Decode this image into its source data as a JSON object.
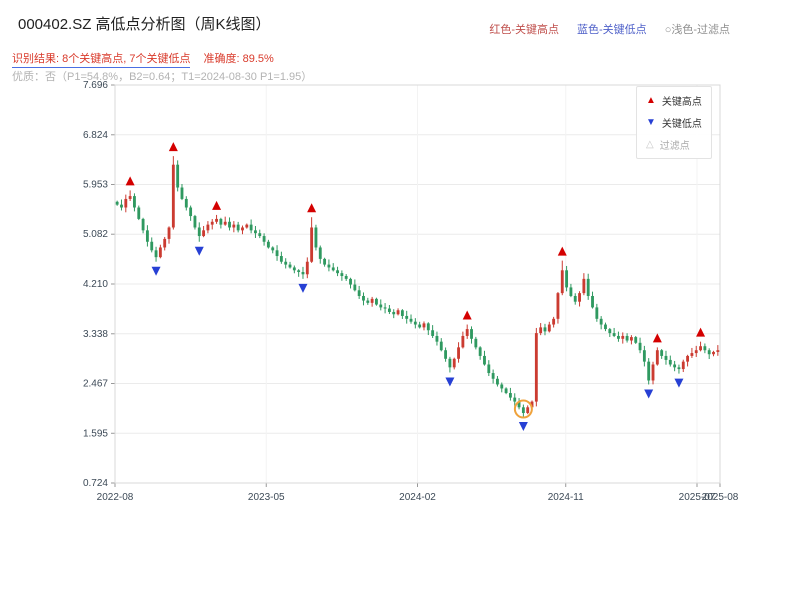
{
  "header": {
    "title": "000402.SZ 高低点分析图（周K线图）",
    "legend_high": "红色-关键高点",
    "legend_low": "蓝色-关键低点",
    "legend_filter": "○浅色-过滤点",
    "result_line": "识别结果: 8个关键高点, 7个关键低点",
    "accuracy": "准确度: 89.5%",
    "quality_line": "优质：否（P1=54.8%，B2=0.64；T1=2024-08-30 P1=1.95）"
  },
  "chart_legend": {
    "high": "关键高点",
    "low": "关键低点",
    "filter": "过滤点"
  },
  "colors": {
    "up_candle": "#cb3b31",
    "down_candle": "#2f9960",
    "key_high_marker": "#d40000",
    "key_low_marker": "#2740d4",
    "filter_circle": "#efa23b",
    "grid": "#ebebeb",
    "grid_vertical": "#f3f3f3",
    "axis_border": "#d8d8d8",
    "tick_text": "#3d4a57",
    "accent_red": "#d93a2b",
    "accent_blue": "#4f61c9"
  },
  "chart_data": {
    "type": "candlestick",
    "title": "000402.SZ 高低点分析图（周K线图）",
    "frequency": "weekly",
    "y_ticks": [
      "7.696",
      "6.824",
      "5.953",
      "5.082",
      "4.210",
      "3.338",
      "2.467",
      "1.595",
      "0.724"
    ],
    "x_ticks": [
      {
        "label": "2022-08",
        "pos": 0.0
      },
      {
        "label": "2023-05",
        "pos": 0.25
      },
      {
        "label": "2024-02",
        "pos": 0.5
      },
      {
        "label": "2024-11",
        "pos": 0.745
      },
      {
        "label": "2025-07",
        "pos": 0.962
      },
      {
        "label": "2025-08",
        "pos": 1.0
      }
    ],
    "closes": [
      5.6,
      5.55,
      5.7,
      5.75,
      5.55,
      5.35,
      5.15,
      4.95,
      4.8,
      4.68,
      4.85,
      5.0,
      5.2,
      6.3,
      5.9,
      5.7,
      5.55,
      5.4,
      5.2,
      5.05,
      5.15,
      5.25,
      5.3,
      5.35,
      5.25,
      5.3,
      5.2,
      5.25,
      5.15,
      5.2,
      5.25,
      5.15,
      5.1,
      5.05,
      4.95,
      4.85,
      4.8,
      4.7,
      4.6,
      4.55,
      4.5,
      4.45,
      4.42,
      4.38,
      4.6,
      5.2,
      4.85,
      4.65,
      4.55,
      4.5,
      4.45,
      4.4,
      4.35,
      4.3,
      4.2,
      4.1,
      4.0,
      3.92,
      3.88,
      3.95,
      3.85,
      3.8,
      3.78,
      3.72,
      3.68,
      3.75,
      3.65,
      3.6,
      3.55,
      3.5,
      3.45,
      3.52,
      3.4,
      3.3,
      3.2,
      3.05,
      2.9,
      2.75,
      2.9,
      3.1,
      3.3,
      3.42,
      3.25,
      3.1,
      2.95,
      2.8,
      2.65,
      2.55,
      2.45,
      2.38,
      2.3,
      2.22,
      2.15,
      2.05,
      1.95,
      2.05,
      2.15,
      3.35,
      3.45,
      3.38,
      3.5,
      3.6,
      4.05,
      4.45,
      4.15,
      4.0,
      3.9,
      4.05,
      4.3,
      4.0,
      3.8,
      3.6,
      3.5,
      3.42,
      3.35,
      3.3,
      3.25,
      3.3,
      3.22,
      3.28,
      3.18,
      3.05,
      2.85,
      2.52,
      2.8,
      3.05,
      2.95,
      2.88,
      2.8,
      2.75,
      2.72,
      2.85,
      2.95,
      3.0,
      3.05,
      3.12,
      3.05,
      2.98,
      3.02,
      3.05
    ],
    "key_highs": [
      {
        "i": 3,
        "price": 5.85
      },
      {
        "i": 13,
        "price": 6.45
      },
      {
        "i": 23,
        "price": 5.42
      },
      {
        "i": 45,
        "price": 5.38
      },
      {
        "i": 81,
        "price": 3.5
      },
      {
        "i": 103,
        "price": 4.62
      },
      {
        "i": 125,
        "price": 3.1
      },
      {
        "i": 135,
        "price": 3.2
      }
    ],
    "key_lows": [
      {
        "i": 9,
        "price": 4.6
      },
      {
        "i": 19,
        "price": 4.95
      },
      {
        "i": 43,
        "price": 4.3
      },
      {
        "i": 77,
        "price": 2.66
      },
      {
        "i": 94,
        "price": 1.88
      },
      {
        "i": 123,
        "price": 2.45
      },
      {
        "i": 130,
        "price": 2.64
      }
    ],
    "spike_highs": [
      {
        "i": 108,
        "price": 4.4
      }
    ],
    "filtered_point": {
      "i": 94,
      "price": 1.95,
      "date": "2024-08-30"
    }
  }
}
